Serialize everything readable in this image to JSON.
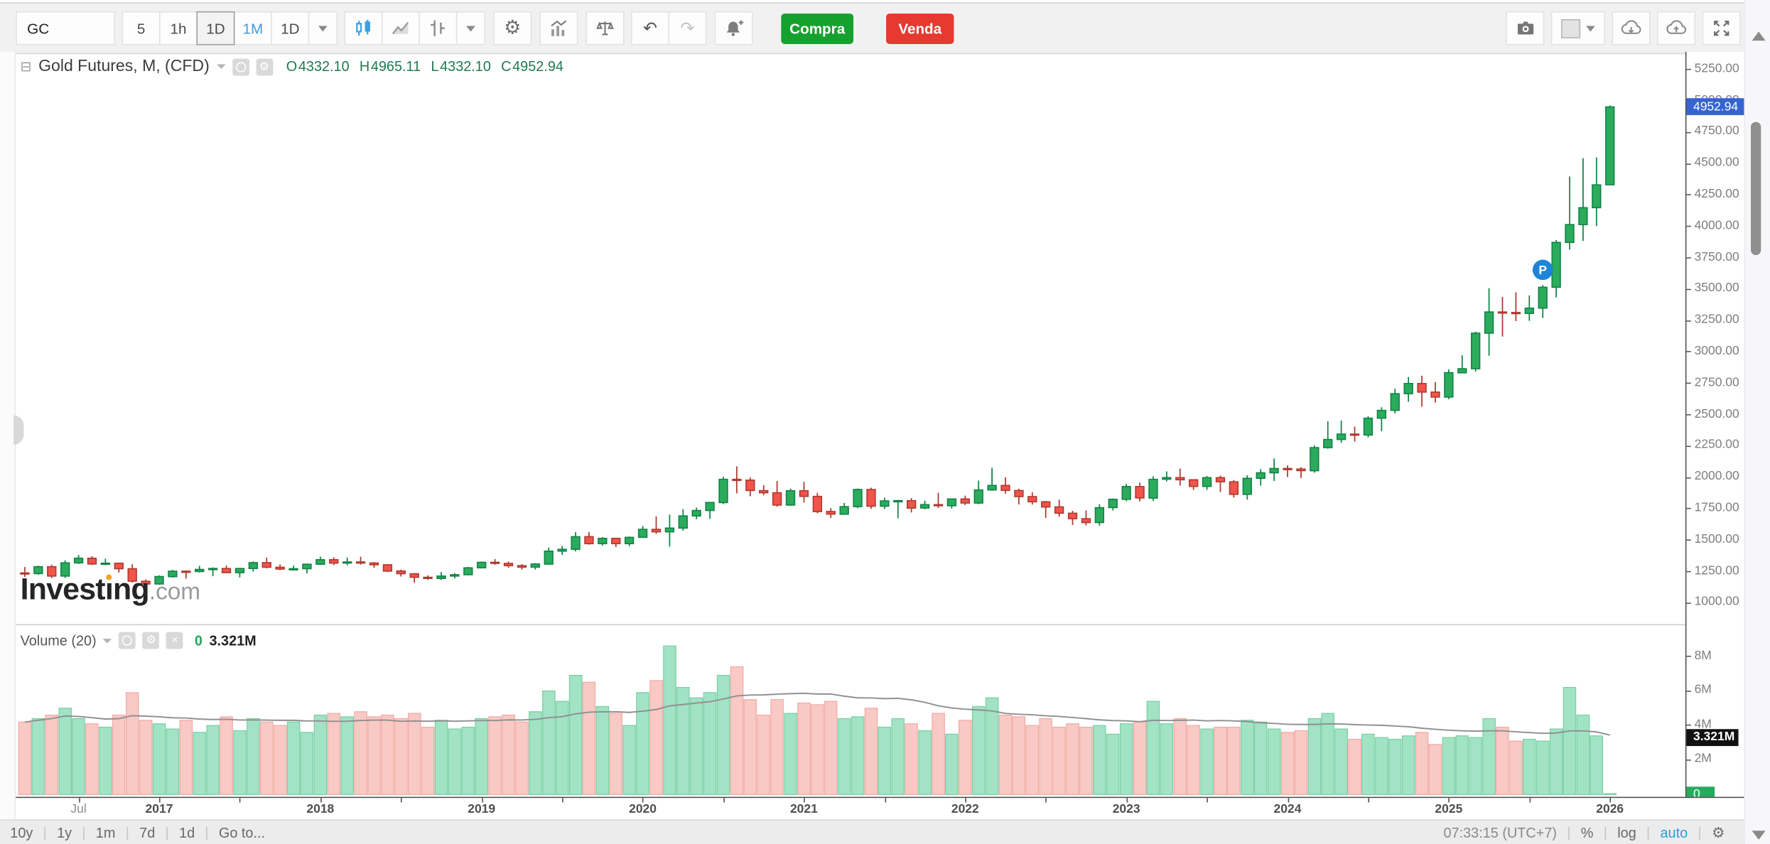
{
  "icons": {
    "collapse": "⊟",
    "gear": "⚙",
    "close": "×",
    "undo": "↶",
    "redo": "↷"
  },
  "toolbar": {
    "symbol": "GC",
    "intervals": [
      "5",
      "1h",
      "1D",
      "1M",
      "1D"
    ],
    "buy_label": "Compra",
    "sell_label": "Venda"
  },
  "legend": {
    "title": "Gold Futures, M, (CFD)",
    "o_label": "O",
    "o": "4332.10",
    "h_label": "H",
    "h": "4965.11",
    "l_label": "L",
    "l": "4332.10",
    "c_label": "C",
    "c": "4952.94"
  },
  "volume_legend": {
    "title": "Volume (20)",
    "current": "0",
    "ma": "3.321M"
  },
  "watermark": {
    "part1": "Invest",
    "part2": "ng",
    "suffix": ".com"
  },
  "bottom_bar": {
    "ranges": [
      "10y",
      "1y",
      "1m",
      "7d",
      "1d"
    ],
    "goto": "Go to...",
    "clock": "07:33:15 (UTC+7)",
    "percent": "%",
    "log": "log",
    "auto": "auto"
  },
  "colors": {
    "up": "#2bab5c",
    "up_border": "#118347",
    "down": "#f0544b",
    "down_border": "#ad3a30",
    "vol_up": "#a2e3c5",
    "vol_up_border": "#7bd0a6",
    "vol_down": "#f9c9c5",
    "vol_down_border": "#f2aca6",
    "ma_line": "#8f8f8f",
    "price_badge": "#3564d2",
    "vol_ma_badge": "#111111",
    "vol_current_badge": "#26ab5f",
    "marker": "#1d84d7",
    "buy": "#16a12f",
    "sell": "#e6392f",
    "interval_active": "#3d9be9"
  },
  "chart_data": {
    "type": "candlestick",
    "title": "Gold Futures, M, (CFD)",
    "symbol": "GC",
    "interval": "M",
    "start_month": "2016-03",
    "price_axis": {
      "min": 1000,
      "max": 5250,
      "step": 250,
      "last_price": 4952.94,
      "last_price_label": "4952.94"
    },
    "volume_axis": {
      "ticks_m": [
        8,
        6,
        4,
        2
      ],
      "ma_current_m": 3.321,
      "ma_label": "3.321M",
      "current_m": 0,
      "current_label": "0"
    },
    "time_labels": [
      {
        "i": 4,
        "text": "Jul",
        "minor": true
      },
      {
        "i": 10,
        "text": "2017"
      },
      {
        "i": 22,
        "text": "2018"
      },
      {
        "i": 34,
        "text": "2019"
      },
      {
        "i": 46,
        "text": "2020"
      },
      {
        "i": 58,
        "text": "2021"
      },
      {
        "i": 70,
        "text": "2022"
      },
      {
        "i": 82,
        "text": "2023"
      },
      {
        "i": 94,
        "text": "2024"
      },
      {
        "i": 106,
        "text": "2025"
      },
      {
        "i": 118,
        "text": "2026"
      }
    ],
    "marker": {
      "index": 113,
      "price": 3655,
      "label": "P"
    },
    "candles": [
      [
        1240,
        1287,
        1208,
        1235,
        4.2
      ],
      [
        1235,
        1299,
        1225,
        1290,
        4.4
      ],
      [
        1290,
        1306,
        1199,
        1215,
        4.6
      ],
      [
        1215,
        1340,
        1200,
        1320,
        5.0
      ],
      [
        1320,
        1384,
        1310,
        1357,
        4.4
      ],
      [
        1357,
        1373,
        1302,
        1311,
        4.1
      ],
      [
        1311,
        1353,
        1302,
        1317,
        3.9
      ],
      [
        1317,
        1322,
        1243,
        1273,
        4.6
      ],
      [
        1273,
        1309,
        1163,
        1174,
        5.9
      ],
      [
        1174,
        1188,
        1124,
        1152,
        4.3
      ],
      [
        1152,
        1220,
        1146,
        1211,
        4.1
      ],
      [
        1211,
        1264,
        1202,
        1254,
        3.8
      ],
      [
        1254,
        1261,
        1194,
        1251,
        4.3
      ],
      [
        1251,
        1297,
        1244,
        1268,
        3.6
      ],
      [
        1268,
        1284,
        1214,
        1275,
        4.0
      ],
      [
        1275,
        1299,
        1240,
        1242,
        4.5
      ],
      [
        1242,
        1280,
        1204,
        1275,
        3.7
      ],
      [
        1275,
        1331,
        1251,
        1322,
        4.4
      ],
      [
        1322,
        1362,
        1277,
        1285,
        4.2
      ],
      [
        1285,
        1308,
        1262,
        1271,
        4.0
      ],
      [
        1271,
        1299,
        1260,
        1273,
        4.2
      ],
      [
        1273,
        1315,
        1236,
        1309,
        3.6
      ],
      [
        1309,
        1370,
        1303,
        1345,
        4.6
      ],
      [
        1345,
        1364,
        1303,
        1318,
        4.7
      ],
      [
        1318,
        1362,
        1301,
        1327,
        4.5
      ],
      [
        1327,
        1369,
        1306,
        1319,
        4.8
      ],
      [
        1319,
        1326,
        1281,
        1305,
        4.5
      ],
      [
        1305,
        1309,
        1247,
        1255,
        4.6
      ],
      [
        1255,
        1266,
        1211,
        1233,
        4.4
      ],
      [
        1233,
        1239,
        1160,
        1205,
        4.7
      ],
      [
        1205,
        1220,
        1184,
        1196,
        3.9
      ],
      [
        1196,
        1246,
        1184,
        1215,
        4.3
      ],
      [
        1215,
        1238,
        1196,
        1226,
        3.8
      ],
      [
        1226,
        1288,
        1221,
        1281,
        3.9
      ],
      [
        1281,
        1331,
        1277,
        1325,
        4.4
      ],
      [
        1325,
        1350,
        1305,
        1316,
        4.5
      ],
      [
        1316,
        1330,
        1281,
        1298,
        4.6
      ],
      [
        1298,
        1311,
        1266,
        1286,
        4.2
      ],
      [
        1286,
        1318,
        1267,
        1311,
        4.8
      ],
      [
        1311,
        1442,
        1305,
        1414,
        6.0
      ],
      [
        1414,
        1454,
        1384,
        1428,
        5.4
      ],
      [
        1428,
        1565,
        1412,
        1529,
        6.9
      ],
      [
        1529,
        1566,
        1465,
        1473,
        6.5
      ],
      [
        1473,
        1525,
        1459,
        1515,
        5.1
      ],
      [
        1515,
        1517,
        1446,
        1473,
        4.7
      ],
      [
        1473,
        1530,
        1453,
        1523,
        4.0
      ],
      [
        1523,
        1613,
        1520,
        1587,
        5.9
      ],
      [
        1587,
        1691,
        1551,
        1567,
        6.6
      ],
      [
        1567,
        1704,
        1450,
        1597,
        8.6
      ],
      [
        1597,
        1748,
        1576,
        1694,
        6.2
      ],
      [
        1694,
        1761,
        1668,
        1737,
        5.6
      ],
      [
        1737,
        1804,
        1671,
        1801,
        5.9
      ],
      [
        1801,
        2005,
        1789,
        1986,
        6.9
      ],
      [
        1986,
        2089,
        1874,
        1979,
        7.4
      ],
      [
        1979,
        2001,
        1851,
        1896,
        5.5
      ],
      [
        1896,
        1939,
        1859,
        1879,
        4.6
      ],
      [
        1879,
        1973,
        1767,
        1781,
        5.5
      ],
      [
        1781,
        1912,
        1775,
        1895,
        4.7
      ],
      [
        1895,
        1966,
        1801,
        1850,
        5.3
      ],
      [
        1850,
        1878,
        1715,
        1729,
        5.2
      ],
      [
        1729,
        1756,
        1677,
        1708,
        5.4
      ],
      [
        1708,
        1798,
        1704,
        1768,
        4.4
      ],
      [
        1768,
        1913,
        1756,
        1905,
        4.5
      ],
      [
        1905,
        1919,
        1750,
        1772,
        5.0
      ],
      [
        1772,
        1839,
        1750,
        1814,
        3.9
      ],
      [
        1814,
        1822,
        1675,
        1816,
        4.4
      ],
      [
        1816,
        1836,
        1721,
        1757,
        4.1
      ],
      [
        1757,
        1815,
        1746,
        1784,
        3.7
      ],
      [
        1784,
        1879,
        1758,
        1775,
        4.7
      ],
      [
        1775,
        1820,
        1753,
        1829,
        3.5
      ],
      [
        1829,
        1856,
        1781,
        1797,
        4.3
      ],
      [
        1797,
        1976,
        1788,
        1901,
        5.1
      ],
      [
        1901,
        2078,
        1895,
        1937,
        5.6
      ],
      [
        1937,
        2003,
        1871,
        1897,
        4.6
      ],
      [
        1897,
        1911,
        1785,
        1848,
        4.5
      ],
      [
        1848,
        1882,
        1784,
        1807,
        4.0
      ],
      [
        1807,
        1814,
        1678,
        1766,
        4.4
      ],
      [
        1766,
        1824,
        1688,
        1716,
        3.9
      ],
      [
        1716,
        1735,
        1622,
        1672,
        4.1
      ],
      [
        1672,
        1738,
        1618,
        1641,
        3.9
      ],
      [
        1641,
        1788,
        1616,
        1760,
        4.0
      ],
      [
        1760,
        1833,
        1737,
        1826,
        3.5
      ],
      [
        1826,
        1949,
        1811,
        1928,
        4.1
      ],
      [
        1928,
        1960,
        1810,
        1837,
        4.2
      ],
      [
        1837,
        2010,
        1813,
        1986,
        5.4
      ],
      [
        1986,
        2049,
        1969,
        1999,
        4.1
      ],
      [
        1999,
        2072,
        1936,
        1982,
        4.4
      ],
      [
        1982,
        1983,
        1901,
        1929,
        4.0
      ],
      [
        1929,
        2012,
        1902,
        1999,
        3.8
      ],
      [
        1999,
        2015,
        1884,
        1966,
        3.9
      ],
      [
        1966,
        1980,
        1839,
        1866,
        3.9
      ],
      [
        1866,
        2019,
        1824,
        1994,
        4.3
      ],
      [
        1994,
        2067,
        1935,
        2038,
        4.2
      ],
      [
        2038,
        2152,
        1973,
        2072,
        3.8
      ],
      [
        2072,
        2097,
        2004,
        2067,
        3.6
      ],
      [
        2067,
        2083,
        1996,
        2054,
        3.7
      ],
      [
        2054,
        2256,
        2039,
        2238,
        4.4
      ],
      [
        2238,
        2449,
        2229,
        2303,
        4.7
      ],
      [
        2303,
        2454,
        2277,
        2346,
        3.8
      ],
      [
        2346,
        2406,
        2287,
        2339,
        3.2
      ],
      [
        2339,
        2488,
        2319,
        2473,
        3.5
      ],
      [
        2473,
        2560,
        2370,
        2535,
        3.3
      ],
      [
        2535,
        2708,
        2511,
        2668,
        3.2
      ],
      [
        2668,
        2801,
        2603,
        2749,
        3.4
      ],
      [
        2749,
        2811,
        2565,
        2681,
        3.6
      ],
      [
        2681,
        2761,
        2596,
        2641,
        2.9
      ],
      [
        2641,
        2862,
        2624,
        2835,
        3.3
      ],
      [
        2835,
        2974,
        2834,
        2867,
        3.4
      ],
      [
        2867,
        3162,
        2844,
        3150,
        3.3
      ],
      [
        3150,
        3509,
        2970,
        3319,
        4.4
      ],
      [
        3319,
        3439,
        3123,
        3315,
        3.9
      ],
      [
        3315,
        3476,
        3246,
        3308,
        3.1
      ],
      [
        3308,
        3451,
        3248,
        3350,
        3.2
      ],
      [
        3350,
        3534,
        3272,
        3516,
        3.1
      ],
      [
        3516,
        3892,
        3435,
        3873,
        3.8
      ],
      [
        3873,
        4398,
        3815,
        4015,
        6.2
      ],
      [
        4015,
        4545,
        3886,
        4150,
        4.6
      ],
      [
        4150,
        4550,
        4004,
        4332,
        3.4
      ],
      [
        4332.1,
        4965.11,
        4332.1,
        4952.94,
        0.05
      ]
    ]
  }
}
